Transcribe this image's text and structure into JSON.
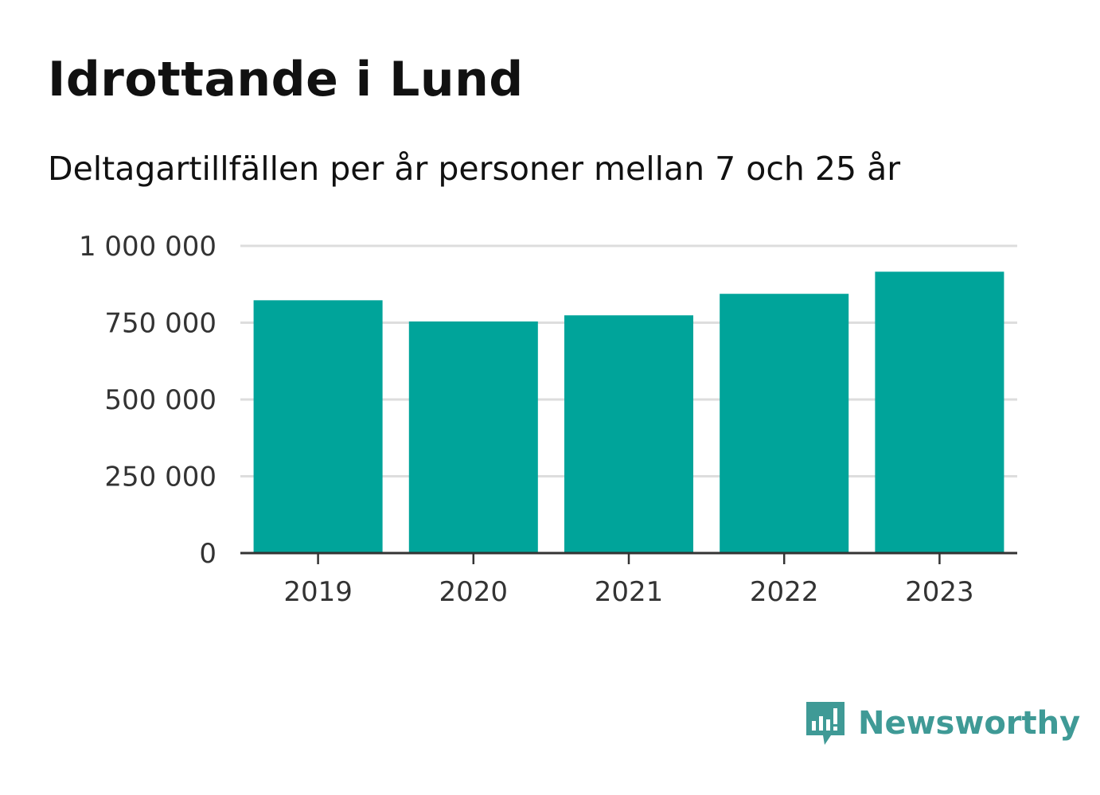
{
  "title": "Idrottande i Lund",
  "subtitle": "Deltagartillfällen per år personer mellan 7 och 25 år",
  "brand": {
    "name": "Newsworthy",
    "color": "#3f9a96",
    "icon": "bar-chart-speech-bubble-icon"
  },
  "colors": {
    "bar": "#00a49a",
    "grid": "#dddddd",
    "axis": "#333333"
  },
  "chart_data": {
    "type": "bar",
    "categories": [
      "2019",
      "2020",
      "2021",
      "2022",
      "2023"
    ],
    "values": [
      823000,
      754000,
      774000,
      844000,
      916000
    ],
    "title": "Idrottande i Lund",
    "subtitle": "Deltagartillfällen per år personer mellan 7 och 25 år",
    "xlabel": "",
    "ylabel": "",
    "ylim": [
      0,
      1000000
    ],
    "yticks": [
      0,
      250000,
      500000,
      750000,
      1000000
    ],
    "ytick_labels": [
      "0",
      "250 000",
      "500 000",
      "750 000",
      "1 000 000"
    ],
    "grid": true,
    "legend": "none"
  }
}
